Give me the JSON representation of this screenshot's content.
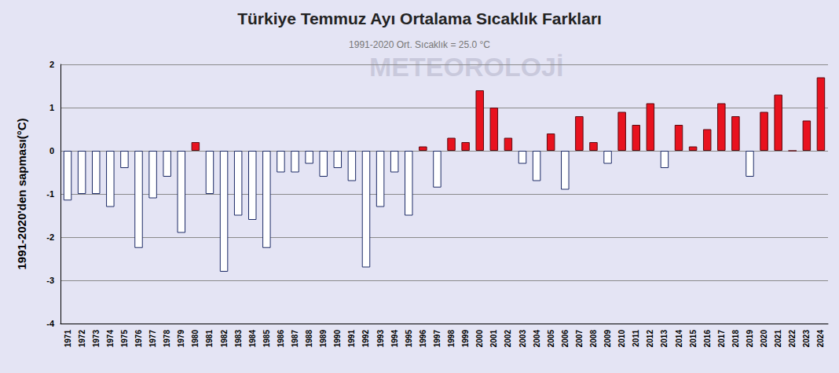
{
  "chart_data": {
    "type": "bar",
    "title": "Türkiye Temmuz Ayı Ortalama Sıcaklık Farkları",
    "subtitle": "1991-2020 Ort. Sıcaklık = 25.0 °C",
    "y_label": "1991-2020'den sapması(°C)",
    "annotations": [
      "METEOROLOJİ"
    ],
    "categories": [
      "1971",
      "1972",
      "1973",
      "1974",
      "1975",
      "1976",
      "1977",
      "1978",
      "1979",
      "1980",
      "1981",
      "1982",
      "1983",
      "1984",
      "1985",
      "1986",
      "1987",
      "1988",
      "1989",
      "1990",
      "1991",
      "1992",
      "1993",
      "1994",
      "1995",
      "1996",
      "1997",
      "1998",
      "1999",
      "2000",
      "2001",
      "2002",
      "2003",
      "2004",
      "2005",
      "2006",
      "2007",
      "2008",
      "2009",
      "2010",
      "2011",
      "2012",
      "2013",
      "2014",
      "2015",
      "2016",
      "2017",
      "2018",
      "2019",
      "2020",
      "2021",
      "2022",
      "2023",
      "2024"
    ],
    "values": [
      -1.15,
      -1.0,
      -1.0,
      -1.3,
      -0.4,
      -2.25,
      -1.1,
      -0.6,
      -1.9,
      0.2,
      -1.0,
      -2.8,
      -1.5,
      -1.6,
      -2.25,
      -0.5,
      -0.5,
      -0.3,
      -0.6,
      -0.4,
      -0.7,
      -2.7,
      -1.3,
      -0.5,
      -1.5,
      0.1,
      -0.85,
      0.3,
      0.2,
      1.4,
      1.0,
      0.3,
      -0.3,
      -0.7,
      0.4,
      -0.9,
      0.8,
      0.2,
      -0.3,
      0.9,
      0.6,
      1.1,
      -0.4,
      0.6,
      0.1,
      0.5,
      1.1,
      0.8,
      -0.6,
      0.9,
      1.3,
      0.0,
      0.7,
      1.7
    ],
    "colors": [
      "#ffffff",
      "#ffffff",
      "#ffffff",
      "#ffffff",
      "#ffffff",
      "#ffffff",
      "#ffffff",
      "#ffffff",
      "#ffffff",
      "#e8121e",
      "#ffffff",
      "#ffffff",
      "#ffffff",
      "#ffffff",
      "#ffffff",
      "#ffffff",
      "#ffffff",
      "#ffffff",
      "#ffffff",
      "#ffffff",
      "#ffffff",
      "#ffffff",
      "#ffffff",
      "#ffffff",
      "#ffffff",
      "#e8121e",
      "#ffffff",
      "#e8121e",
      "#e8121e",
      "#e8121e",
      "#e8121e",
      "#e8121e",
      "#ffffff",
      "#ffffff",
      "#e8121e",
      "#ffffff",
      "#e8121e",
      "#e8121e",
      "#ffffff",
      "#e8121e",
      "#e8121e",
      "#e8121e",
      "#ffffff",
      "#e8121e",
      "#e8121e",
      "#e8121e",
      "#e8121e",
      "#e8121e",
      "#ffffff",
      "#e8121e",
      "#e8121e",
      "#e8121e",
      "#e8121e",
      "#e8121e"
    ],
    "ylim": [
      -4,
      2
    ],
    "yticks": [
      -4,
      -3,
      -2,
      -1,
      0,
      1,
      2
    ],
    "grid": true
  }
}
